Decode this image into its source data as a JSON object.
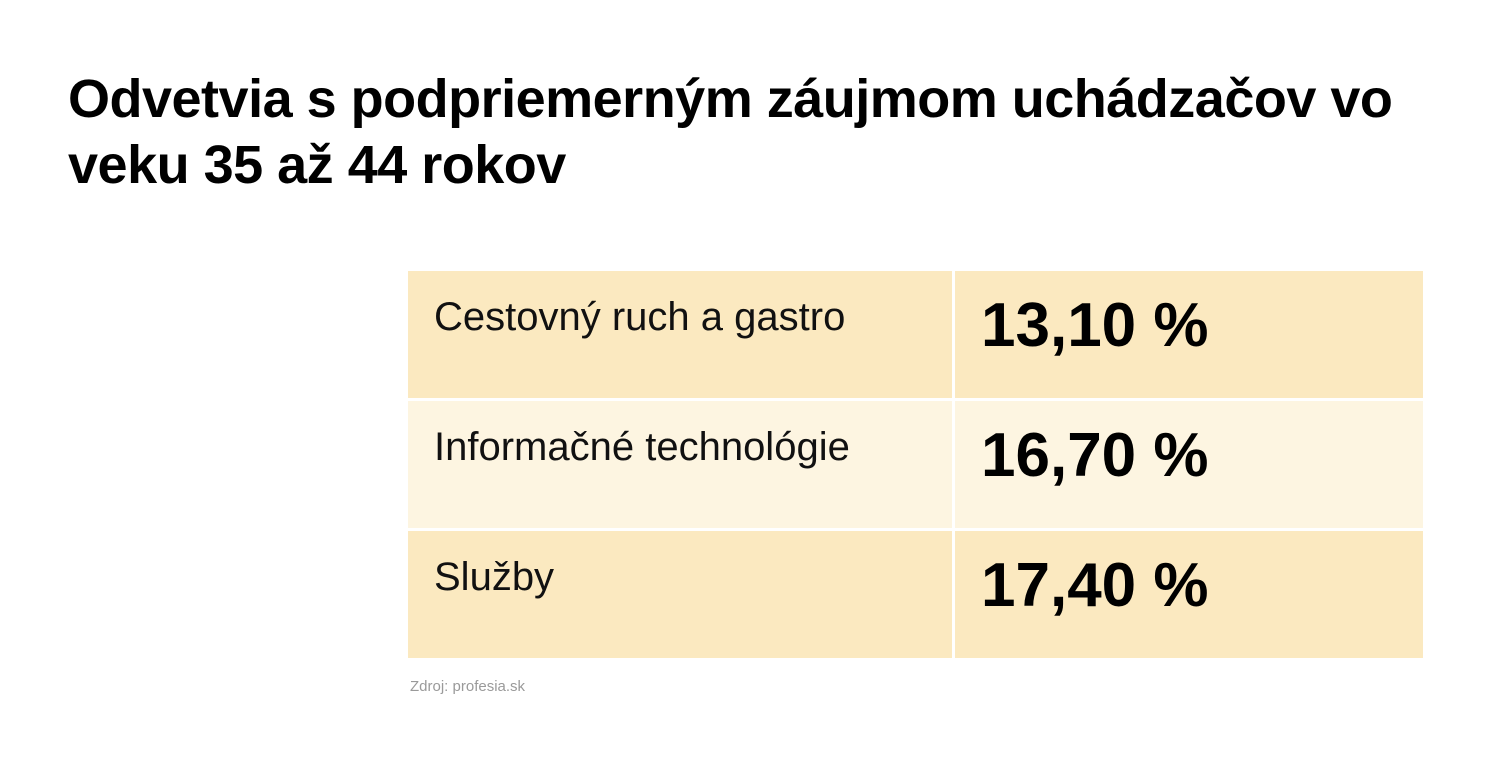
{
  "title": "Odvetvia s podpriemerným záujmom uchádzačov vo veku 35 až 44 rokov",
  "colors": {
    "row_odd": "#fbe9c0",
    "row_even": "#fdf5e1",
    "source_text": "#9a9a9a"
  },
  "chart_data": {
    "type": "table",
    "title": "Odvetvia s podpriemerným záujmom uchádzačov vo veku 35 až 44 rokov",
    "rows": [
      {
        "label": "Cestovný ruch a gastro",
        "value": 13.1,
        "display": "13,10 %"
      },
      {
        "label": "Informačné technológie",
        "value": 16.7,
        "display": "16,70 %"
      },
      {
        "label": "Služby",
        "value": 17.4,
        "display": "17,40 %"
      }
    ],
    "source": "Zdroj: profesia.sk"
  }
}
